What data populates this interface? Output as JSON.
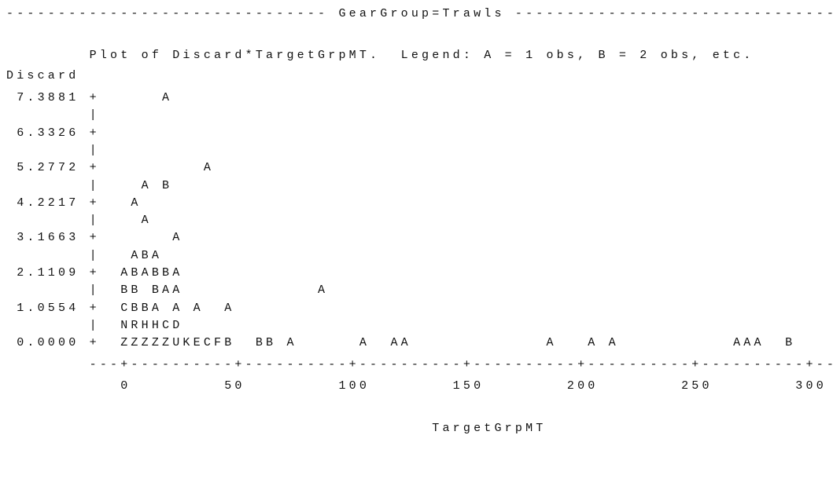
{
  "lines": [
    "------------------------------- GearGroup=Trawls -------------------------------",
    "        Plot of Discard*TargetGrpMT.  Legend: A = 1 obs, B = 2 obs, etc.",
    "Discard",
    " 7.3881 +      A",
    "        |",
    " 6.3326 +",
    "        |",
    " 5.2772 +          A",
    "        |    A B",
    " 4.2217 +   A",
    "        |    A",
    " 3.1663 +       A",
    "        |   ABA",
    " 2.1109 +  ABABBA",
    "        |  BB BAA             A",
    " 1.0554 +  CBBA A A  A",
    "        |  NRHHCD",
    " 0.0000 +  ZZZZZUKECFB  BB A      A  AA             A   A A           AAA  B",
    "        ---+----------+----------+----------+----------+----------+----------+--",
    "           0         50         100        150        200        250        300",
    "                                         TargetGrpMT"
  ]
}
